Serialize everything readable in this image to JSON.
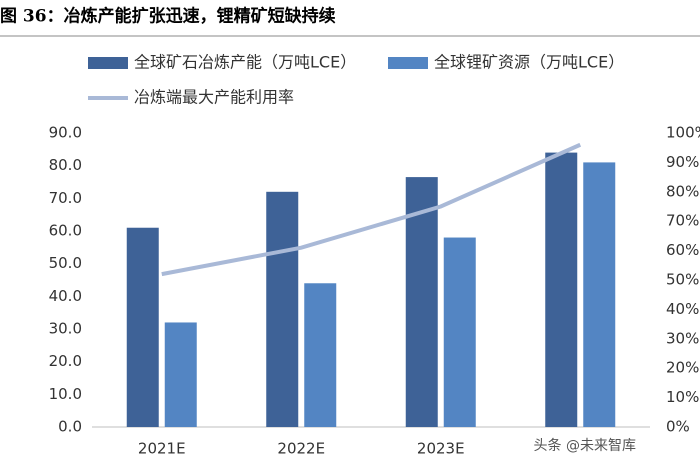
{
  "chart_data": {
    "type": "bar-line",
    "title": "图 36：冶炼产能扩张迅速，锂精矿短缺持续",
    "categories": [
      "2021E",
      "2022E",
      "2023E",
      null
    ],
    "series": [
      {
        "name": "全球矿石冶炼产能（万吨LCE）",
        "color": "#3e6297",
        "values": [
          61,
          72,
          76.5,
          84
        ]
      },
      {
        "name": "全球锂矿资源（万吨LCE）",
        "color": "#5385c3",
        "values": [
          32,
          44,
          58,
          81
        ]
      },
      {
        "name": "冶炼端最大产能利用率",
        "color": "#a9b9d7",
        "axis": "y2",
        "values": [
          52,
          61,
          75,
          96
        ]
      }
    ],
    "ylim": [
      0,
      90
    ],
    "yticks": [
      {
        "value": 0,
        "label": "0.0"
      },
      {
        "value": 10,
        "label": "10.0"
      },
      {
        "value": 20,
        "label": "20.0"
      },
      {
        "value": 30,
        "label": "30.0"
      },
      {
        "value": 40,
        "label": "40.0"
      },
      {
        "value": 50,
        "label": "50.0"
      },
      {
        "value": 60,
        "label": "60.0"
      },
      {
        "value": 70,
        "label": "70.0"
      },
      {
        "value": 80,
        "label": "80.0"
      },
      {
        "value": 90,
        "label": "90.0"
      }
    ],
    "y2lim": [
      0,
      100
    ],
    "y2ticks": [
      {
        "value": 0,
        "label": "0%"
      },
      {
        "value": 10,
        "label": "10%"
      },
      {
        "value": 20,
        "label": "20%"
      },
      {
        "value": 30,
        "label": "30%"
      },
      {
        "value": 40,
        "label": "40%"
      },
      {
        "value": 50,
        "label": "50%"
      },
      {
        "value": 60,
        "label": "60%"
      },
      {
        "value": 70,
        "label": "70%"
      },
      {
        "value": 80,
        "label": "80%"
      },
      {
        "value": 90,
        "label": "90%"
      },
      {
        "value": 100,
        "label": "100%"
      }
    ],
    "annotations": [
      "头条 @未来智库"
    ]
  }
}
